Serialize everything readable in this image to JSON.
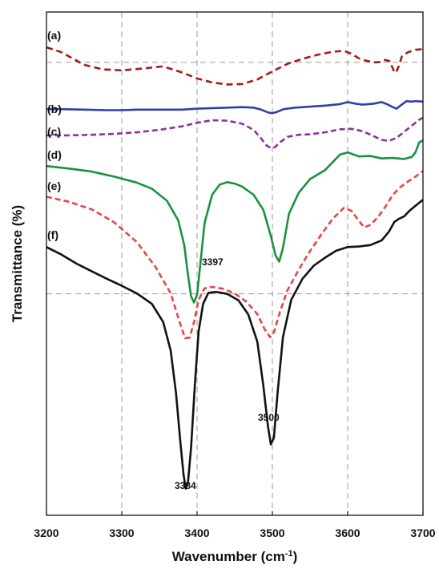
{
  "chart_data": {
    "type": "line",
    "xlabel": "Wavenumber (cm",
    "xlabel_sup": "-1",
    "xlabel_close": ")",
    "ylabel": "Transmittance (%)",
    "xlim": [
      3200,
      3700
    ],
    "x_ticks": [
      3200,
      3300,
      3400,
      3500,
      3600,
      3700
    ],
    "x_gridlines": [
      3300,
      3400,
      3500,
      3600
    ],
    "grid": "dashed vertical lines at x ticks; dashed horizontal reference lines at two levels",
    "y_units": "relative transmittance (arbitrary, top = 100)",
    "ylim": [
      0,
      100
    ],
    "h_reference_lines": [
      90,
      44
    ],
    "series": [
      {
        "label": "(a)",
        "color": "#a01c1c",
        "dash": "8,5",
        "points": [
          [
            3200,
            93
          ],
          [
            3220,
            92
          ],
          [
            3250,
            89.5
          ],
          [
            3275,
            88.6
          ],
          [
            3300,
            88.4
          ],
          [
            3330,
            88.8
          ],
          [
            3355,
            89.2
          ],
          [
            3380,
            88
          ],
          [
            3400,
            86.8
          ],
          [
            3420,
            86
          ],
          [
            3440,
            85.6
          ],
          [
            3460,
            85.7
          ],
          [
            3480,
            86.6
          ],
          [
            3500,
            88.2
          ],
          [
            3520,
            89.7
          ],
          [
            3540,
            90.7
          ],
          [
            3560,
            91.5
          ],
          [
            3580,
            92.1
          ],
          [
            3595,
            92.3
          ],
          [
            3605,
            91.7
          ],
          [
            3615,
            90.8
          ],
          [
            3625,
            90.3
          ],
          [
            3635,
            90
          ],
          [
            3645,
            90.1
          ],
          [
            3650,
            90.5
          ],
          [
            3656,
            90.2
          ],
          [
            3661,
            88.4
          ],
          [
            3664,
            87.9
          ],
          [
            3668,
            89.3
          ],
          [
            3672,
            91.2
          ],
          [
            3680,
            92
          ],
          [
            3690,
            92.5
          ],
          [
            3700,
            92.6
          ]
        ]
      },
      {
        "label": "(b)",
        "color": "#2f3fa8",
        "dash": "",
        "points": [
          [
            3200,
            80.7
          ],
          [
            3220,
            80.7
          ],
          [
            3250,
            80.6
          ],
          [
            3280,
            80.5
          ],
          [
            3300,
            80.5
          ],
          [
            3320,
            80.6
          ],
          [
            3340,
            80.6
          ],
          [
            3360,
            80.6
          ],
          [
            3380,
            80.6
          ],
          [
            3400,
            80.8
          ],
          [
            3420,
            80.9
          ],
          [
            3440,
            81
          ],
          [
            3460,
            81.1
          ],
          [
            3475,
            81
          ],
          [
            3485,
            80.6
          ],
          [
            3495,
            80
          ],
          [
            3500,
            79.9
          ],
          [
            3505,
            80.1
          ],
          [
            3515,
            80.7
          ],
          [
            3530,
            81
          ],
          [
            3550,
            81.2
          ],
          [
            3570,
            81.4
          ],
          [
            3590,
            81.7
          ],
          [
            3600,
            82.1
          ],
          [
            3610,
            81.8
          ],
          [
            3620,
            81.6
          ],
          [
            3635,
            81.8
          ],
          [
            3645,
            82.1
          ],
          [
            3652,
            81.7
          ],
          [
            3660,
            81.1
          ],
          [
            3665,
            80.8
          ],
          [
            3670,
            81.4
          ],
          [
            3678,
            82.3
          ],
          [
            3685,
            82.2
          ],
          [
            3690,
            82.3
          ],
          [
            3700,
            82.2
          ]
        ]
      },
      {
        "label": "(c)",
        "color": "#8c2fa0",
        "dash": "7,4",
        "points": [
          [
            3200,
            75.5
          ],
          [
            3230,
            75.5
          ],
          [
            3260,
            75.6
          ],
          [
            3290,
            75.8
          ],
          [
            3320,
            76.1
          ],
          [
            3350,
            76.6
          ],
          [
            3380,
            77.3
          ],
          [
            3400,
            78
          ],
          [
            3420,
            78.5
          ],
          [
            3440,
            78.4
          ],
          [
            3460,
            77.8
          ],
          [
            3475,
            76.6
          ],
          [
            3485,
            74.9
          ],
          [
            3492,
            73.5
          ],
          [
            3498,
            73
          ],
          [
            3503,
            73.1
          ],
          [
            3510,
            74.1
          ],
          [
            3520,
            75.2
          ],
          [
            3535,
            75.6
          ],
          [
            3550,
            75.7
          ],
          [
            3570,
            76.1
          ],
          [
            3590,
            76.7
          ],
          [
            3605,
            76.8
          ],
          [
            3620,
            76.3
          ],
          [
            3635,
            75.3
          ],
          [
            3645,
            74.6
          ],
          [
            3655,
            74.4
          ],
          [
            3665,
            75
          ],
          [
            3675,
            76.2
          ],
          [
            3685,
            77.4
          ],
          [
            3695,
            78.6
          ],
          [
            3700,
            79
          ]
        ]
      },
      {
        "label": "(d)",
        "color": "#17933f",
        "dash": "",
        "points": [
          [
            3200,
            69.4
          ],
          [
            3230,
            68.9
          ],
          [
            3260,
            68.3
          ],
          [
            3290,
            67.3
          ],
          [
            3320,
            66.1
          ],
          [
            3340,
            64.9
          ],
          [
            3360,
            62.5
          ],
          [
            3375,
            58.6
          ],
          [
            3383,
            53.7
          ],
          [
            3388,
            47.7
          ],
          [
            3392,
            43.5
          ],
          [
            3396,
            42.3
          ],
          [
            3400,
            43.8
          ],
          [
            3404,
            49.5
          ],
          [
            3410,
            58.1
          ],
          [
            3420,
            63.7
          ],
          [
            3430,
            65.7
          ],
          [
            3440,
            66.2
          ],
          [
            3450,
            65.9
          ],
          [
            3460,
            65.3
          ],
          [
            3475,
            63.7
          ],
          [
            3488,
            60.7
          ],
          [
            3498,
            55.5
          ],
          [
            3504,
            51.7
          ],
          [
            3509,
            50.4
          ],
          [
            3514,
            53.1
          ],
          [
            3522,
            59.9
          ],
          [
            3535,
            64.1
          ],
          [
            3550,
            66.8
          ],
          [
            3570,
            68.6
          ],
          [
            3590,
            71.7
          ],
          [
            3600,
            72.1
          ],
          [
            3615,
            71.3
          ],
          [
            3630,
            71.4
          ],
          [
            3645,
            70.9
          ],
          [
            3660,
            71
          ],
          [
            3675,
            70.8
          ],
          [
            3685,
            71.2
          ],
          [
            3690,
            72.1
          ],
          [
            3695,
            74.1
          ],
          [
            3700,
            74.5
          ]
        ]
      },
      {
        "label": "(e)",
        "color": "#e84545",
        "dash": "7,4",
        "points": [
          [
            3200,
            63.3
          ],
          [
            3230,
            62.3
          ],
          [
            3260,
            60.8
          ],
          [
            3290,
            58.2
          ],
          [
            3320,
            54.3
          ],
          [
            3345,
            49.3
          ],
          [
            3365,
            44.1
          ],
          [
            3377,
            38.3
          ],
          [
            3384,
            35.2
          ],
          [
            3390,
            35.3
          ],
          [
            3396,
            38.4
          ],
          [
            3402,
            42.8
          ],
          [
            3410,
            45.1
          ],
          [
            3420,
            45.4
          ],
          [
            3435,
            45
          ],
          [
            3450,
            44.1
          ],
          [
            3465,
            42.5
          ],
          [
            3480,
            40
          ],
          [
            3490,
            36.9
          ],
          [
            3497,
            35.4
          ],
          [
            3502,
            36.3
          ],
          [
            3510,
            40.4
          ],
          [
            3520,
            44.7
          ],
          [
            3535,
            48.8
          ],
          [
            3550,
            52.5
          ],
          [
            3565,
            55.8
          ],
          [
            3580,
            58.9
          ],
          [
            3595,
            61.1
          ],
          [
            3605,
            60.5
          ],
          [
            3615,
            58.5
          ],
          [
            3622,
            57.2
          ],
          [
            3630,
            57.7
          ],
          [
            3640,
            59.2
          ],
          [
            3650,
            61.3
          ],
          [
            3660,
            63.7
          ],
          [
            3670,
            65.2
          ],
          [
            3680,
            66.3
          ],
          [
            3690,
            67.3
          ],
          [
            3700,
            68.4
          ]
        ]
      },
      {
        "label": "(f)",
        "color": "#111111",
        "dash": "",
        "points": [
          [
            3200,
            53.3
          ],
          [
            3220,
            51.8
          ],
          [
            3240,
            50
          ],
          [
            3260,
            48.5
          ],
          [
            3280,
            47
          ],
          [
            3300,
            45.6
          ],
          [
            3320,
            44.1
          ],
          [
            3340,
            42
          ],
          [
            3355,
            38.4
          ],
          [
            3365,
            32.7
          ],
          [
            3372,
            24.3
          ],
          [
            3378,
            14.3
          ],
          [
            3382,
            8.1
          ],
          [
            3385,
            5.3
          ],
          [
            3388,
            6.6
          ],
          [
            3392,
            13.4
          ],
          [
            3397,
            25.8
          ],
          [
            3402,
            36.5
          ],
          [
            3408,
            42
          ],
          [
            3415,
            44.2
          ],
          [
            3425,
            44.4
          ],
          [
            3440,
            44
          ],
          [
            3455,
            42.7
          ],
          [
            3468,
            39.9
          ],
          [
            3480,
            34.5
          ],
          [
            3488,
            25.8
          ],
          [
            3494,
            17.8
          ],
          [
            3498,
            14.1
          ],
          [
            3502,
            15.4
          ],
          [
            3507,
            24.5
          ],
          [
            3514,
            35.4
          ],
          [
            3525,
            42.8
          ],
          [
            3540,
            47
          ],
          [
            3555,
            49.6
          ],
          [
            3570,
            51.2
          ],
          [
            3585,
            52.6
          ],
          [
            3600,
            53.3
          ],
          [
            3615,
            53.4
          ],
          [
            3630,
            53.7
          ],
          [
            3645,
            54.6
          ],
          [
            3655,
            56.4
          ],
          [
            3662,
            58.3
          ],
          [
            3668,
            58.9
          ],
          [
            3675,
            59.4
          ],
          [
            3682,
            60.5
          ],
          [
            3690,
            61.5
          ],
          [
            3700,
            62.7
          ]
        ]
      }
    ],
    "annotations": [
      "3397",
      "3384",
      "3500"
    ]
  }
}
